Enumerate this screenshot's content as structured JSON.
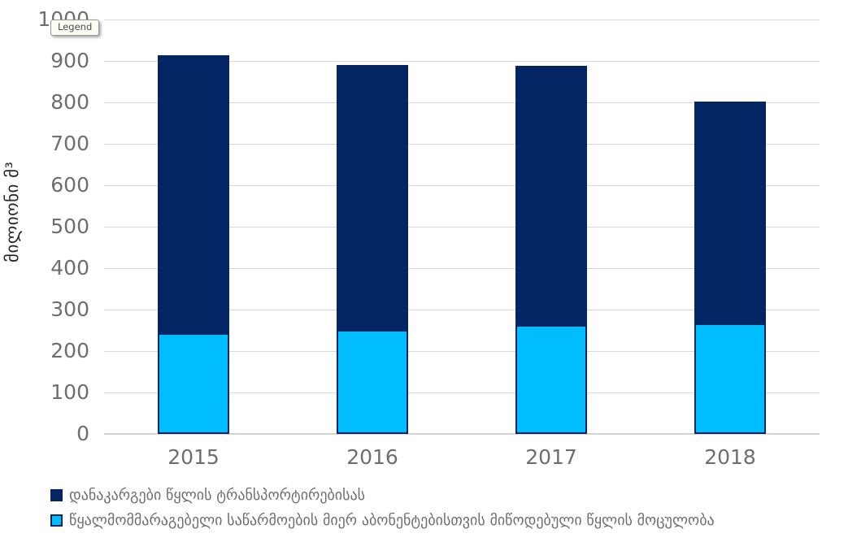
{
  "tooltip": {
    "label": "Legend"
  },
  "y_axis": {
    "title": "მილიონი მ³"
  },
  "chart_data": {
    "type": "bar",
    "stacked": true,
    "title": "",
    "xlabel": "",
    "ylabel": "მილიონი მ³",
    "categories": [
      "2015",
      "2016",
      "2017",
      "2018"
    ],
    "series": [
      {
        "name": "დანაკარგები წყლის ტრანსპორტირებისას",
        "color": "#042563",
        "values": [
          669,
          640,
          627,
          534
        ]
      },
      {
        "name": "წყალმომმარაგებელი საწარმოების მიერ აბონენტებისთვის მიწოდებული წყლის მოცულობა",
        "color": "#00bdff",
        "values": [
          244,
          251,
          262,
          267
        ]
      }
    ],
    "stack_totals": [
      913,
      891,
      889,
      801
    ],
    "ylim": [
      0,
      1000
    ],
    "ytick_step": 100,
    "ytick_labels": [
      "0",
      "100",
      "200",
      "300",
      "400",
      "500",
      "600",
      "700",
      "800",
      "900",
      "1000"
    ],
    "grid": true,
    "legend_position": "bottom-left"
  },
  "colors": {
    "losses_navy": "#042563",
    "supplied_cyan": "#00bdff",
    "gridline": "#d9d9d9",
    "tick_text": "#6e6e6e",
    "axis_title_text": "#262626",
    "background": "#ffffff"
  }
}
